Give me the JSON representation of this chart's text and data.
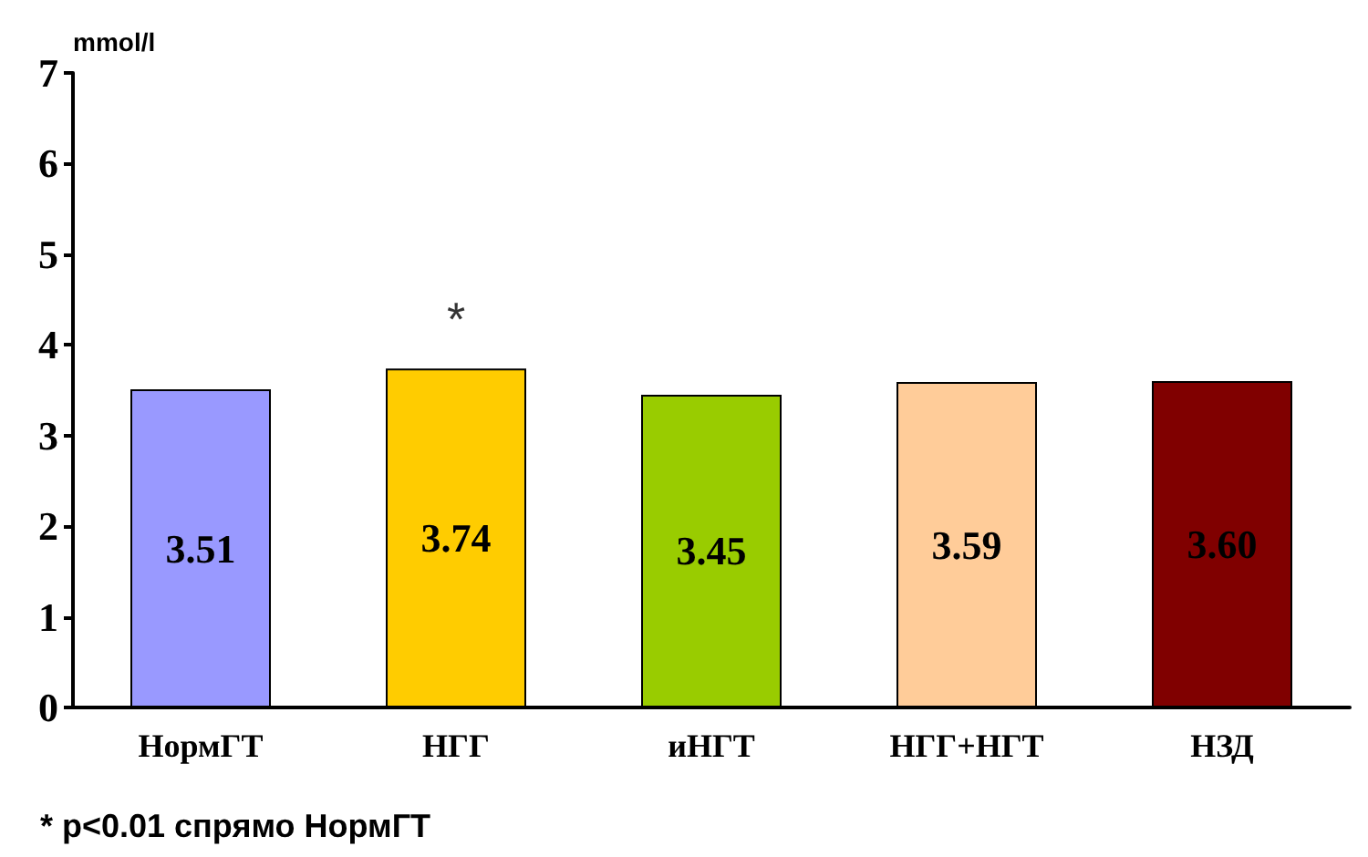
{
  "chart_data": {
    "type": "bar",
    "ylabel": "mmol/l",
    "categories": [
      "НормГТ",
      "НГГ",
      "иНГТ",
      "НГГ+НГТ",
      "НЗД"
    ],
    "values": [
      3.51,
      3.74,
      3.45,
      3.59,
      3.6
    ],
    "colors": [
      "#9999ff",
      "#ffcc00",
      "#99cc00",
      "#ffcc99",
      "#800000"
    ],
    "value_labels": [
      "3.51",
      "3.74",
      "3.45",
      "3.59",
      "3.60"
    ],
    "ylim": [
      0,
      7
    ],
    "yticks": [
      0,
      1,
      2,
      3,
      4,
      5,
      6,
      7
    ],
    "grid": false,
    "annotations": [
      {
        "text": "*",
        "x": "НГГ",
        "y": 3.74
      },
      "* p<0.01 спрямо НормГТ"
    ]
  }
}
